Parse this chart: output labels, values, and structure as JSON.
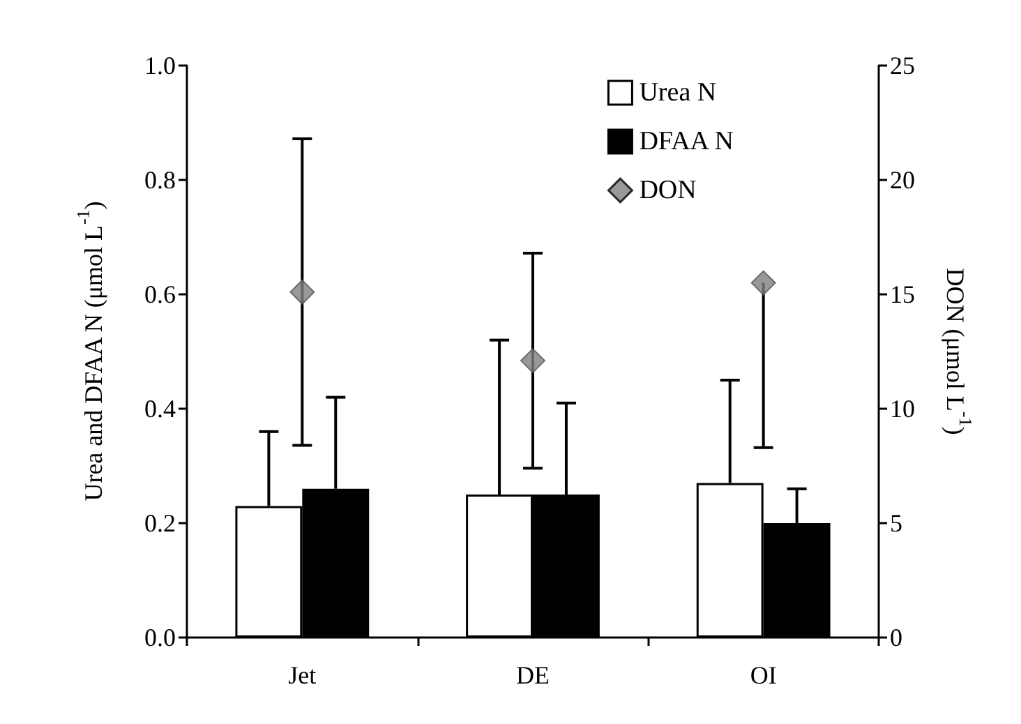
{
  "chart_data": {
    "type": "bar",
    "ylabel": "Urea and DFAA N (μmol L$^{-1}$)",
    "y2label": "DON (μmol L$^{-1}$)",
    "categories": [
      "Jet",
      "DE",
      "OI"
    ],
    "series": [
      {
        "name": "Urea N",
        "color": "#ffffff",
        "values": [
          0.23,
          0.25,
          0.27
        ],
        "errors": [
          [
            0.23,
            0.36
          ],
          [
            0.25,
            0.52
          ],
          [
            0.27,
            0.45
          ]
        ]
      },
      {
        "name": "DFAA N",
        "color": "#000000",
        "values": [
          0.26,
          0.25,
          0.2
        ],
        "errors": [
          [
            0.26,
            0.42
          ],
          [
            0.25,
            0.41
          ],
          [
            0.2,
            0.26
          ]
        ]
      },
      {
        "name": "DON",
        "type": "scatter",
        "axis": "y2",
        "color": "#808080",
        "marker": "diamond",
        "x": [
          "Jet",
          "DE",
          "OI"
        ],
        "values": [
          15.1,
          12.1,
          15.5
        ],
        "errors": [
          6.7,
          4.7,
          [
            8.3,
            15.5
          ]
        ]
      }
    ],
    "ylim": [
      0,
      1
    ],
    "yticks": [
      {
        "value": 0,
        "label": "0.0"
      },
      0.2,
      0.4,
      0.6,
      0.8,
      {
        "value": 1,
        "label": "1.0"
      }
    ],
    "y2lim": [
      0,
      25
    ],
    "y2ticks": [
      0,
      5,
      10,
      15,
      20,
      25
    ],
    "grid": false,
    "legend": "top right"
  }
}
